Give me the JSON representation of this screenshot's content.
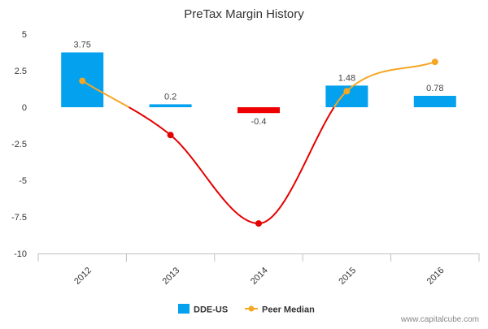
{
  "watermark": "www.capitalcube.com",
  "chart_data": {
    "type": "bar",
    "title": "PreTax Margin History",
    "categories": [
      "2012",
      "2013",
      "2014",
      "2015",
      "2016"
    ],
    "ylim": [
      -10,
      5
    ],
    "yticks": [
      5,
      2.5,
      0,
      -2.5,
      -5,
      -7.5,
      -10
    ],
    "ytick_labels": [
      "5",
      "2.5",
      "0",
      "-2.5",
      "-5",
      "-7.5",
      "-10"
    ],
    "grid": false,
    "legend_position": "bottom-center",
    "series": [
      {
        "name": "DDE-US",
        "kind": "bar",
        "values": [
          3.75,
          0.2,
          -0.4,
          1.48,
          0.78
        ],
        "labels": [
          "3.75",
          "0.2",
          "-0.4",
          "1.48",
          "0.78"
        ],
        "color": "#03A1EE",
        "negative_color": "#EE0000"
      },
      {
        "name": "Peer Median",
        "kind": "line",
        "values": [
          1.8,
          -1.9,
          -7.95,
          1.1,
          3.1
        ],
        "color": "#F5A623",
        "below_zero_color": "#E50000"
      }
    ]
  }
}
